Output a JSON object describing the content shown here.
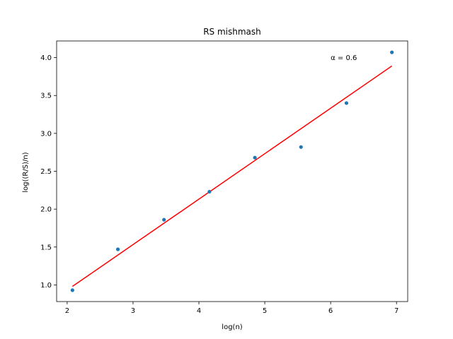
{
  "chart_data": {
    "type": "scatter",
    "title": "RS mishmash",
    "xlabel": "log(n)",
    "ylabel": "log((R/S)/n)",
    "xlim": [
      1.84,
      7.17
    ],
    "ylim": [
      0.78,
      4.22
    ],
    "xticks": [
      2,
      3,
      4,
      5,
      6,
      7
    ],
    "yticks": [
      1.0,
      1.5,
      2.0,
      2.5,
      3.0,
      3.5,
      4.0
    ],
    "xtick_labels": [
      "2",
      "3",
      "4",
      "5",
      "6",
      "7"
    ],
    "ytick_labels": [
      "1.0",
      "1.5",
      "2.0",
      "2.5",
      "3.0",
      "3.5",
      "4.0"
    ],
    "grid": false,
    "legend": "none",
    "annotation": {
      "text": "α = 0.6",
      "x": 6.0,
      "y": 4.0
    },
    "series": [
      {
        "type": "scatter",
        "color": "#1f77b4",
        "x": [
          2.08,
          2.77,
          3.47,
          4.16,
          4.85,
          5.55,
          6.24,
          6.93
        ],
        "y": [
          0.93,
          1.47,
          1.86,
          2.23,
          2.68,
          2.82,
          3.4,
          4.07
        ]
      },
      {
        "type": "line",
        "color": "#ff0000",
        "x": [
          2.08,
          6.93
        ],
        "y": [
          0.98,
          3.89
        ]
      }
    ]
  }
}
